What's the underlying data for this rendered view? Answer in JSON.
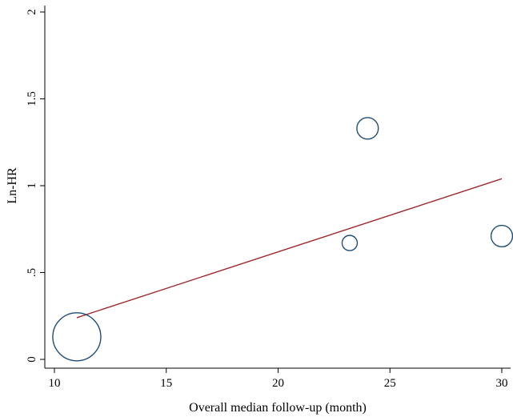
{
  "chart_data": {
    "type": "scatter",
    "title": "",
    "xlabel": "Overall median follow-up (month)",
    "ylabel": "Ln-HR",
    "xlim": [
      10,
      30
    ],
    "ylim": [
      0,
      2
    ],
    "grid": false,
    "x_ticks": [
      10,
      15,
      20,
      25,
      30
    ],
    "x_tick_labels": [
      "10",
      "15",
      "20",
      "25",
      "30"
    ],
    "y_ticks": [
      0,
      0.5,
      1,
      1.5,
      2
    ],
    "y_tick_labels": [
      "0",
      ".5",
      "1",
      "1.5",
      "2"
    ],
    "points": [
      {
        "x": 11.0,
        "y": 0.13,
        "weight": 1.0
      },
      {
        "x": 23.2,
        "y": 0.67,
        "weight": 0.1
      },
      {
        "x": 24.0,
        "y": 1.33,
        "weight": 0.2
      },
      {
        "x": 30.0,
        "y": 0.71,
        "weight": 0.2
      }
    ],
    "fit_line": {
      "x": [
        11.0,
        30.0
      ],
      "y": [
        0.24,
        1.04
      ]
    },
    "colors": {
      "marker": "#1f4e79",
      "fit_line": "#a0292e",
      "axis": "#000000"
    }
  }
}
